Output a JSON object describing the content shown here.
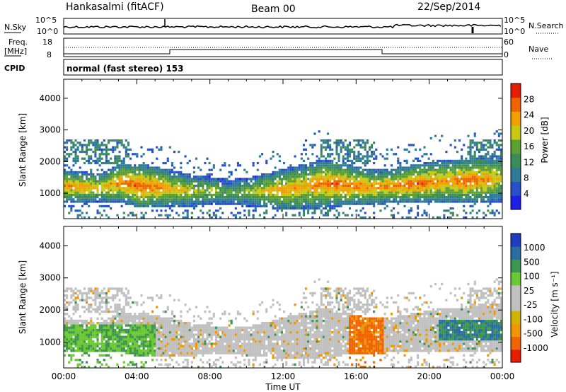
{
  "header": {
    "station": "Hankasalmi (fitACF)",
    "beam": "Beam 00",
    "date": "22/Sep/2014"
  },
  "top_panels": {
    "nsky_label": "N.Sky",
    "nsky_ticks": [
      "10^5",
      "10^0"
    ],
    "nsearch_label": "N.Search",
    "nsearch_ticks": [
      "10^5",
      "10^0"
    ],
    "freq_label_1": "Freq.",
    "freq_label_2": "[MHz]",
    "freq_ticks": [
      "18",
      "8"
    ],
    "nave_label": "Nave",
    "nave_ticks": [
      "60",
      "0"
    ],
    "cpid_label": "CPID",
    "cpid_text": "normal (fast stereo) 153"
  },
  "colors": {
    "power_scale": [
      "#1e1ee6",
      "#2850c8",
      "#2e7a9a",
      "#3c8c5a",
      "#5aa032",
      "#c8c814",
      "#f0a000",
      "#f06400",
      "#e61e00"
    ],
    "velocity_scale": [
      "#e61e00",
      "#f06400",
      "#f09600",
      "#d2b400",
      "#c0c0c0",
      "#c0c0c0",
      "#6cc832",
      "#3c9650",
      "#2a6ea0",
      "#1e3cbe"
    ]
  },
  "chart_data": [
    {
      "type": "heatmap",
      "name": "power",
      "ylabel": "Slant Range [km]",
      "yticks": [
        1000,
        2000,
        3000,
        4000
      ],
      "ylim": [
        200,
        4600
      ],
      "xticks": [
        "00:00",
        "04:00",
        "08:00",
        "12:00",
        "16:00",
        "20:00",
        "00:00"
      ],
      "colorbar_label": "Power [dB]",
      "colorbar_ticks": [
        4,
        8,
        12,
        16,
        20,
        24,
        28
      ],
      "band": {
        "hours": [
          0,
          1,
          2,
          3,
          4,
          5,
          6,
          7,
          8,
          9,
          10,
          11,
          12,
          13,
          14,
          15,
          16,
          17,
          18,
          19,
          20,
          21,
          22,
          23,
          24
        ],
        "center_km": [
          1200,
          1150,
          1150,
          1300,
          1200,
          1150,
          1100,
          1050,
          1050,
          1000,
          1000,
          1050,
          1100,
          1150,
          1250,
          1250,
          1200,
          1150,
          1200,
          1250,
          1300,
          1350,
          1350,
          1400,
          1450
        ],
        "width_km": [
          500,
          500,
          450,
          600,
          700,
          650,
          600,
          500,
          450,
          400,
          450,
          550,
          650,
          700,
          800,
          700,
          600,
          550,
          550,
          600,
          650,
          700,
          700,
          700,
          750
        ],
        "peak_db": [
          24,
          24,
          22,
          26,
          28,
          26,
          22,
          20,
          18,
          16,
          18,
          22,
          24,
          24,
          26,
          28,
          26,
          24,
          26,
          28,
          26,
          24,
          28,
          26,
          20
        ]
      }
    },
    {
      "type": "heatmap",
      "name": "velocity",
      "ylabel": "Slant Range [km]",
      "yticks": [
        1000,
        2000,
        3000,
        4000
      ],
      "ylim": [
        200,
        4600
      ],
      "xticks": [
        "00:00",
        "04:00",
        "08:00",
        "12:00",
        "16:00",
        "20:00",
        "00:00"
      ],
      "xlabel": "Time UT",
      "colorbar_label": "Velocity [m s⁻¹]",
      "colorbar_ticks": [
        1000,
        500,
        100,
        25,
        -25,
        -100,
        -500,
        -1000
      ]
    }
  ]
}
